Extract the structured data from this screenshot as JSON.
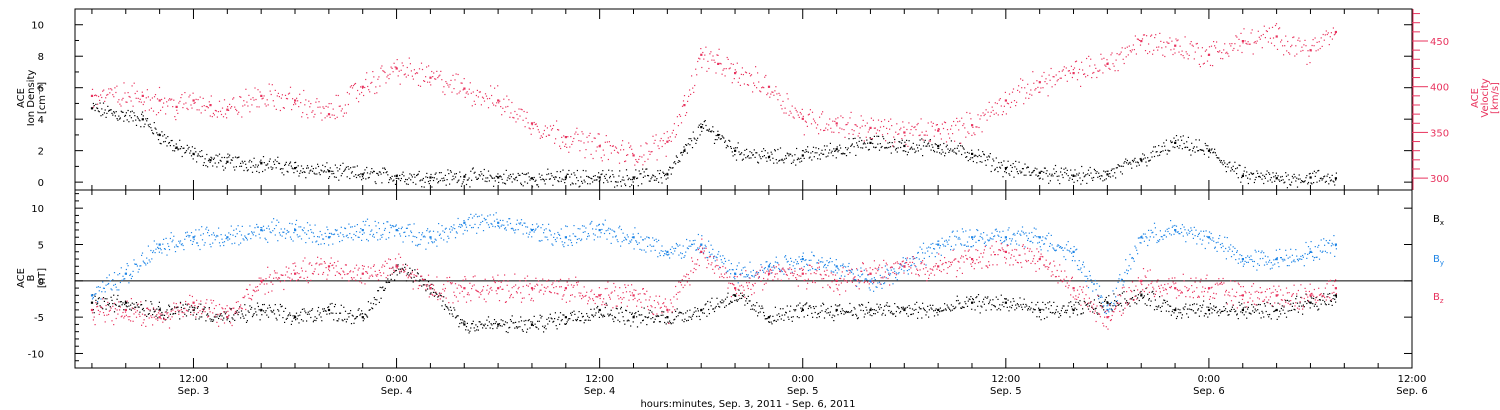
{
  "colors": {
    "ink": "#000000",
    "velocity": "#e8335e",
    "by": "#1f85e6",
    "bz": "#e8335e"
  },
  "chart_data": [
    {
      "type": "scatter",
      "panel": "ion-density-velocity",
      "left_axis": {
        "label_lines": [
          "ACE",
          "Ion Density",
          "[cm⁻³]"
        ],
        "ylim": [
          -0.5,
          11
        ],
        "ticks": [
          "0",
          "2",
          "4",
          "6",
          "8",
          "10"
        ]
      },
      "right_axis": {
        "label_lines": [
          "ACE",
          "Velocity",
          "[km/s]"
        ],
        "ylim": [
          287,
          485
        ],
        "ticks": [
          "300",
          "350",
          "400",
          "450"
        ],
        "color": "#e8335e"
      },
      "x_hours_since_Sep3_00": [
        6,
        9,
        10,
        11,
        12,
        13,
        14,
        16,
        18,
        20,
        22,
        24,
        26,
        28,
        30,
        32,
        34,
        36,
        38,
        40,
        41,
        42,
        43,
        44,
        46,
        48,
        50,
        52,
        54,
        56,
        58,
        60,
        62,
        64,
        66,
        68,
        70,
        72,
        74,
        76,
        78,
        79.5
      ],
      "series": [
        {
          "name": "Ion Density",
          "color": "#000000",
          "values": [
            4.7,
            4.0,
            3.0,
            2.2,
            1.8,
            1.4,
            1.3,
            1.2,
            0.9,
            0.7,
            0.5,
            0.4,
            0.3,
            0.35,
            0.3,
            0.25,
            0.3,
            0.3,
            0.3,
            0.5,
            2.0,
            3.5,
            3.0,
            2.0,
            1.6,
            1.7,
            2.1,
            2.5,
            2.3,
            2.3,
            1.8,
            0.9,
            0.6,
            0.4,
            0.5,
            1.4,
            2.5,
            2.0,
            0.4,
            0.25,
            0.3,
            0.25
          ]
        },
        {
          "name": "Velocity",
          "color": "#e8335e",
          "axis": "right",
          "values": [
            390,
            390,
            385,
            378,
            385,
            380,
            375,
            390,
            385,
            370,
            400,
            420,
            410,
            398,
            385,
            360,
            345,
            335,
            325,
            340,
            380,
            435,
            425,
            415,
            400,
            365,
            360,
            355,
            350,
            352,
            358,
            385,
            405,
            415,
            425,
            450,
            445,
            435,
            450,
            455,
            440,
            460
          ]
        }
      ]
    },
    {
      "type": "scatter",
      "panel": "magnetic-field",
      "left_axis": {
        "label_lines": [
          "ACE",
          "B",
          "[nT]"
        ],
        "ylim": [
          -12,
          12.5
        ],
        "ticks": [
          "-10",
          "-5",
          "0",
          "5",
          "10"
        ]
      },
      "x_axis": {
        "xlim": [
          5,
          84
        ],
        "tick_hours": [
          12,
          24,
          36,
          48,
          60,
          72,
          84
        ],
        "tick_top": [
          "12:00",
          "0:00",
          "12:00",
          "0:00",
          "12:00",
          "0:00",
          "12:00"
        ],
        "tick_bottom": [
          "Sep. 3",
          "Sep. 4",
          "Sep. 4",
          "Sep. 5",
          "Sep. 5",
          "Sep. 6",
          "Sep. 6"
        ],
        "label": "hours:minutes, Sep.  3, 2011 - Sep.  6, 2011"
      },
      "x_hours_since_Sep3_00": [
        6,
        8,
        10,
        12,
        14,
        16,
        18,
        20,
        22,
        24,
        26,
        28,
        30,
        32,
        34,
        36,
        38,
        40,
        42,
        44,
        46,
        48,
        50,
        52,
        54,
        56,
        58,
        60,
        62,
        64,
        66,
        68,
        70,
        72,
        74,
        76,
        78,
        79.5
      ],
      "series": [
        {
          "name": "Bx",
          "color": "#000000",
          "values": [
            -3,
            -3,
            -4,
            -4,
            -5,
            -4,
            -5,
            -4,
            -5,
            2,
            -1,
            -6,
            -6,
            -6,
            -5,
            -4,
            -5,
            -5,
            -4,
            -2,
            -5,
            -4,
            -4,
            -4,
            -4,
            -4,
            -3,
            -3,
            -4,
            -4,
            -3,
            -2,
            -4,
            -4,
            -4,
            -4,
            -3,
            -2
          ]
        },
        {
          "name": "By",
          "color": "#1f85e6",
          "values": [
            -2,
            1,
            5,
            6,
            6,
            7,
            7,
            6,
            7,
            7,
            6,
            8,
            8,
            7,
            6,
            7,
            6,
            4,
            5,
            1,
            2,
            3,
            2,
            0,
            2,
            5,
            6,
            6,
            6,
            4,
            -4,
            6,
            7,
            6,
            3,
            3,
            4,
            5
          ]
        },
        {
          "name": "Bz",
          "color": "#e8335e",
          "values": [
            -4,
            -4,
            -5,
            -3,
            -5,
            0,
            1,
            2,
            1,
            2,
            -1,
            -1,
            -1,
            -1,
            -1,
            -2,
            -2,
            -4,
            4,
            -1,
            1,
            1,
            0,
            1,
            2,
            2,
            3,
            4,
            3,
            -1,
            -5,
            0,
            -1,
            -1,
            -2,
            -2,
            -2,
            -1
          ]
        }
      ],
      "legend": [
        {
          "base": "B",
          "sub": "x",
          "color": "#000000"
        },
        {
          "base": "B",
          "sub": "y",
          "color": "#1f85e6"
        },
        {
          "base": "B",
          "sub": "z",
          "color": "#e8335e"
        }
      ]
    }
  ]
}
